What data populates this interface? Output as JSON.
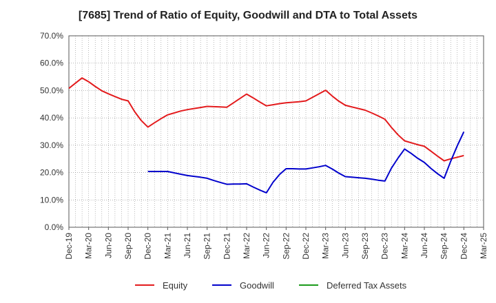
{
  "chart_data": {
    "type": "line",
    "title": "[7685]  Trend of Ratio of Equity, Goodwill and DTA to Total Assets",
    "xlabel": "",
    "ylabel": "",
    "ylim": [
      0,
      70
    ],
    "yticks": [
      "0.0%",
      "10.0%",
      "20.0%",
      "30.0%",
      "40.0%",
      "50.0%",
      "60.0%",
      "70.0%"
    ],
    "grid": true,
    "legend_position": "bottom",
    "x_ticks": [
      "Dec-19",
      "Mar-20",
      "Jun-20",
      "Sep-20",
      "Dec-20",
      "Mar-21",
      "Jun-21",
      "Sep-21",
      "Dec-21",
      "Mar-22",
      "Jun-22",
      "Sep-22",
      "Dec-22",
      "Mar-23",
      "Jun-23",
      "Sep-23",
      "Dec-23",
      "Mar-24",
      "Jun-24",
      "Sep-24",
      "Dec-24",
      "Mar-25"
    ],
    "series": [
      {
        "name": "Equity",
        "color": "#e31a1c",
        "points": [
          {
            "x": "2019-12",
            "y": 50.8
          },
          {
            "x": "2020-01",
            "y": 52.7
          },
          {
            "x": "2020-02",
            "y": 54.6
          },
          {
            "x": "2020-03",
            "y": 53.2
          },
          {
            "x": "2020-04",
            "y": 51.5
          },
          {
            "x": "2020-05",
            "y": 49.9
          },
          {
            "x": "2020-06",
            "y": 48.8
          },
          {
            "x": "2020-07",
            "y": 47.8
          },
          {
            "x": "2020-08",
            "y": 46.8
          },
          {
            "x": "2020-09",
            "y": 46.2
          },
          {
            "x": "2020-10",
            "y": 42.2
          },
          {
            "x": "2020-11",
            "y": 39.0
          },
          {
            "x": "2020-12",
            "y": 36.6
          },
          {
            "x": "2021-01",
            "y": 38.2
          },
          {
            "x": "2021-02",
            "y": 39.7
          },
          {
            "x": "2021-03",
            "y": 41.1
          },
          {
            "x": "2021-04",
            "y": 41.8
          },
          {
            "x": "2021-05",
            "y": 42.5
          },
          {
            "x": "2021-06",
            "y": 43.0
          },
          {
            "x": "2021-07",
            "y": 43.4
          },
          {
            "x": "2021-08",
            "y": 43.8
          },
          {
            "x": "2021-09",
            "y": 44.2
          },
          {
            "x": "2021-10",
            "y": 44.1
          },
          {
            "x": "2021-11",
            "y": 44.0
          },
          {
            "x": "2021-12",
            "y": 43.9
          },
          {
            "x": "2022-01",
            "y": 45.5
          },
          {
            "x": "2022-02",
            "y": 47.1
          },
          {
            "x": "2022-03",
            "y": 48.7
          },
          {
            "x": "2022-04",
            "y": 47.3
          },
          {
            "x": "2022-05",
            "y": 45.8
          },
          {
            "x": "2022-06",
            "y": 44.4
          },
          {
            "x": "2022-07",
            "y": 44.8
          },
          {
            "x": "2022-08",
            "y": 45.2
          },
          {
            "x": "2022-09",
            "y": 45.5
          },
          {
            "x": "2022-10",
            "y": 45.7
          },
          {
            "x": "2022-11",
            "y": 45.9
          },
          {
            "x": "2022-12",
            "y": 46.2
          },
          {
            "x": "2023-01",
            "y": 47.5
          },
          {
            "x": "2023-02",
            "y": 48.8
          },
          {
            "x": "2023-03",
            "y": 50.1
          },
          {
            "x": "2023-04",
            "y": 48.0
          },
          {
            "x": "2023-05",
            "y": 46.1
          },
          {
            "x": "2023-06",
            "y": 44.6
          },
          {
            "x": "2023-07",
            "y": 44.0
          },
          {
            "x": "2023-08",
            "y": 43.4
          },
          {
            "x": "2023-09",
            "y": 42.8
          },
          {
            "x": "2023-10",
            "y": 41.8
          },
          {
            "x": "2023-11",
            "y": 40.7
          },
          {
            "x": "2023-12",
            "y": 39.5
          },
          {
            "x": "2024-01",
            "y": 36.5
          },
          {
            "x": "2024-02",
            "y": 33.8
          },
          {
            "x": "2024-03",
            "y": 31.6
          },
          {
            "x": "2024-04",
            "y": 30.9
          },
          {
            "x": "2024-05",
            "y": 30.2
          },
          {
            "x": "2024-06",
            "y": 29.6
          },
          {
            "x": "2024-07",
            "y": 27.8
          },
          {
            "x": "2024-08",
            "y": 26.0
          },
          {
            "x": "2024-09",
            "y": 24.3
          },
          {
            "x": "2024-10",
            "y": 25.0
          },
          {
            "x": "2024-11",
            "y": 25.6
          },
          {
            "x": "2024-12",
            "y": 26.2
          }
        ]
      },
      {
        "name": "Goodwill",
        "color": "#0000cc",
        "points": [
          {
            "x": "2020-12",
            "y": 20.4
          },
          {
            "x": "2021-01",
            "y": 20.4
          },
          {
            "x": "2021-02",
            "y": 20.4
          },
          {
            "x": "2021-03",
            "y": 20.4
          },
          {
            "x": "2021-04",
            "y": 19.9
          },
          {
            "x": "2021-05",
            "y": 19.4
          },
          {
            "x": "2021-06",
            "y": 18.9
          },
          {
            "x": "2021-07",
            "y": 18.6
          },
          {
            "x": "2021-08",
            "y": 18.3
          },
          {
            "x": "2021-09",
            "y": 17.9
          },
          {
            "x": "2021-10",
            "y": 17.1
          },
          {
            "x": "2021-11",
            "y": 16.4
          },
          {
            "x": "2021-12",
            "y": 15.7
          },
          {
            "x": "2022-01",
            "y": 15.8
          },
          {
            "x": "2022-02",
            "y": 15.8
          },
          {
            "x": "2022-03",
            "y": 15.9
          },
          {
            "x": "2022-04",
            "y": 14.7
          },
          {
            "x": "2022-05",
            "y": 13.6
          },
          {
            "x": "2022-06",
            "y": 12.6
          },
          {
            "x": "2022-07",
            "y": 16.4
          },
          {
            "x": "2022-08",
            "y": 19.3
          },
          {
            "x": "2022-09",
            "y": 21.4
          },
          {
            "x": "2022-10",
            "y": 21.4
          },
          {
            "x": "2022-11",
            "y": 21.3
          },
          {
            "x": "2022-12",
            "y": 21.3
          },
          {
            "x": "2023-01",
            "y": 21.7
          },
          {
            "x": "2023-02",
            "y": 22.1
          },
          {
            "x": "2023-03",
            "y": 22.6
          },
          {
            "x": "2023-04",
            "y": 21.3
          },
          {
            "x": "2023-05",
            "y": 19.8
          },
          {
            "x": "2023-06",
            "y": 18.5
          },
          {
            "x": "2023-07",
            "y": 18.3
          },
          {
            "x": "2023-08",
            "y": 18.1
          },
          {
            "x": "2023-09",
            "y": 17.9
          },
          {
            "x": "2023-10",
            "y": 17.6
          },
          {
            "x": "2023-11",
            "y": 17.2
          },
          {
            "x": "2023-12",
            "y": 16.9
          },
          {
            "x": "2024-01",
            "y": 21.6
          },
          {
            "x": "2024-02",
            "y": 25.3
          },
          {
            "x": "2024-03",
            "y": 28.6
          },
          {
            "x": "2024-04",
            "y": 27.0
          },
          {
            "x": "2024-05",
            "y": 25.2
          },
          {
            "x": "2024-06",
            "y": 23.7
          },
          {
            "x": "2024-07",
            "y": 21.5
          },
          {
            "x": "2024-08",
            "y": 19.6
          },
          {
            "x": "2024-09",
            "y": 17.9
          },
          {
            "x": "2024-10",
            "y": 24.1
          },
          {
            "x": "2024-11",
            "y": 29.8
          },
          {
            "x": "2024-12",
            "y": 34.9
          }
        ]
      },
      {
        "name": "Deferred Tax Assets",
        "color": "#1a9a1a",
        "points": []
      }
    ]
  }
}
